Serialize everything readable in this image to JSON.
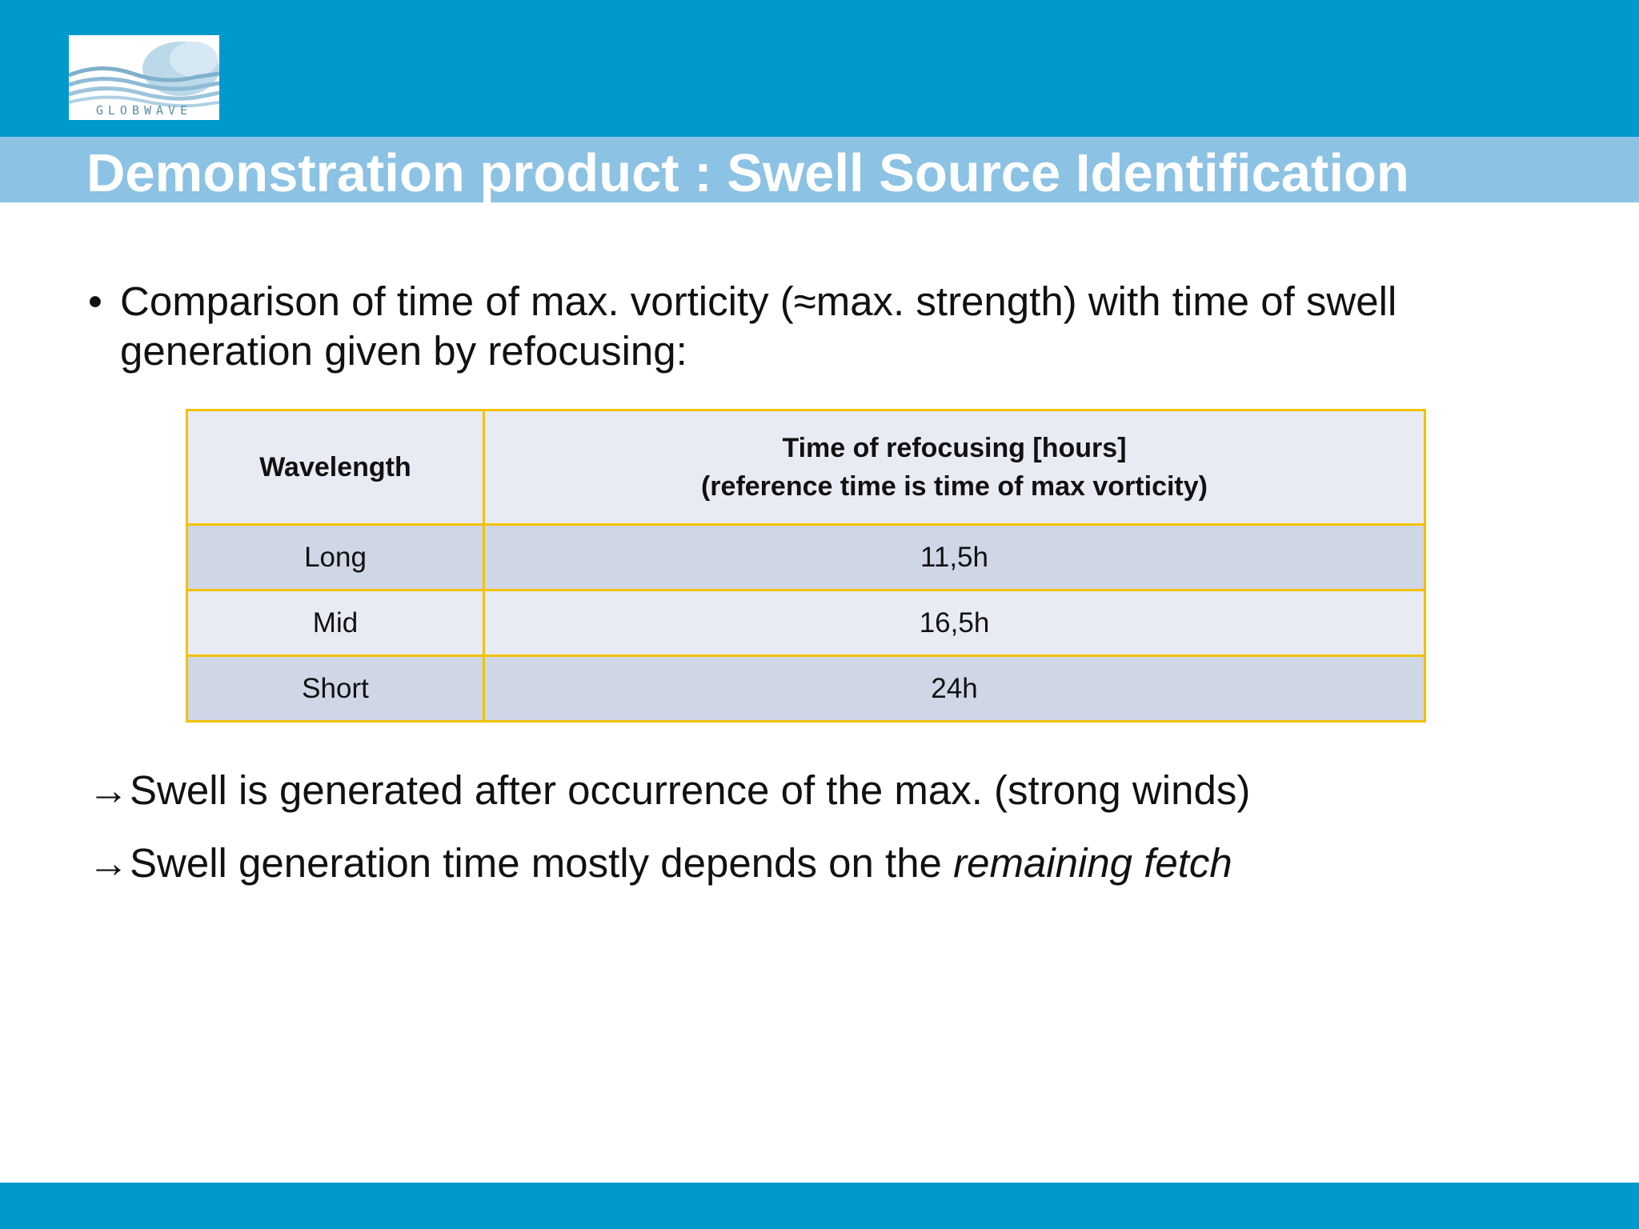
{
  "slide": {
    "logo_text": "GLOBWAVE",
    "title": "Demonstration product  : Swell Source Identification",
    "bullet": {
      "symbol": "•",
      "text": "Comparison of time of max. vorticity (≈max. strength) with time of swell generation given by refocusing:"
    },
    "table": {
      "header": {
        "col1": "Wavelength",
        "col2_line1": "Time of refocusing [hours]",
        "col2_line2": "(reference time is time of max vorticity)"
      },
      "rows": [
        {
          "wavelength": "Long",
          "time": "11,5h"
        },
        {
          "wavelength": "Mid",
          "time": "16,5h"
        },
        {
          "wavelength": "Short",
          "time": "24h"
        }
      ]
    },
    "conclusions": [
      {
        "arrow": "→",
        "text": "Swell is generated after occurrence of the max. (strong winds)",
        "italic": ""
      },
      {
        "arrow": "→",
        "text": "Swell generation time mostly depends on the ",
        "italic": "remaining fetch"
      }
    ]
  },
  "colors": {
    "top_band": "#0099cc",
    "title_band": "#8cc2e3",
    "table_border": "#f2c200",
    "row_dark": "#cfd6e6",
    "row_light": "#e9ebf4"
  }
}
